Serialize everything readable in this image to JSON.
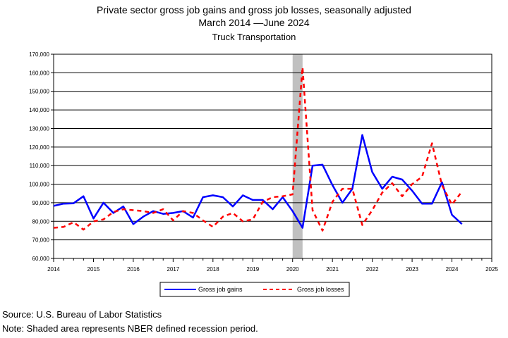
{
  "chart_data": {
    "type": "line",
    "title": "Private sector gross job gains and gross job losses, seasonally adjusted",
    "subtitle": "March 2014 —June 2024",
    "series_title": "Truck Transportation",
    "xlabel": "",
    "ylabel": "",
    "xlim": [
      2014,
      2025
    ],
    "ylim": [
      60000,
      170000
    ],
    "y_ticks": [
      "60,000",
      "70,000",
      "80,000",
      "90,000",
      "100,000",
      "110,000",
      "120,000",
      "130,000",
      "140,000",
      "150,000",
      "160,000",
      "170,000"
    ],
    "x_ticks": [
      "2014",
      "2015",
      "2016",
      "2017",
      "2018",
      "2019",
      "2020",
      "2021",
      "2022",
      "2023",
      "2024",
      "2025"
    ],
    "grid": "horizontal",
    "legend_position": "bottom",
    "recession": {
      "start": 2020.0,
      "end": 2020.25,
      "color": "#c0c0c0"
    },
    "x": [
      2014.0,
      2014.25,
      2014.5,
      2014.75,
      2015.0,
      2015.25,
      2015.5,
      2015.75,
      2016.0,
      2016.25,
      2016.5,
      2016.75,
      2017.0,
      2017.25,
      2017.5,
      2017.75,
      2018.0,
      2018.25,
      2018.5,
      2018.75,
      2019.0,
      2019.25,
      2019.5,
      2019.75,
      2020.0,
      2020.25,
      2020.5,
      2020.75,
      2021.0,
      2021.25,
      2021.5,
      2021.75,
      2022.0,
      2022.25,
      2022.5,
      2022.75,
      2023.0,
      2023.25,
      2023.5,
      2023.75,
      2024.0,
      2024.25
    ],
    "series": [
      {
        "name": "Gross job gains",
        "color": "#0000ff",
        "style": "solid",
        "values": [
          88300,
          89500,
          89700,
          93500,
          81500,
          90000,
          84500,
          88000,
          78500,
          82500,
          85500,
          84000,
          84500,
          85500,
          82000,
          93000,
          94000,
          93000,
          88000,
          94000,
          91500,
          91500,
          86500,
          93000,
          85500,
          76500,
          110000,
          110500,
          99500,
          90000,
          97500,
          126500,
          106500,
          97500,
          104000,
          102500,
          96500,
          89500,
          89500,
          101000,
          83500,
          78500
        ]
      },
      {
        "name": "Gross job losses",
        "color": "#ff0000",
        "style": "dashed",
        "values": [
          76500,
          77000,
          79500,
          75500,
          80000,
          81000,
          85000,
          86500,
          86000,
          85500,
          84500,
          86500,
          80500,
          85500,
          84500,
          80500,
          77000,
          82500,
          84500,
          80000,
          81000,
          90500,
          93000,
          93500,
          94500,
          163000,
          86000,
          75000,
          90500,
          97500,
          97500,
          78000,
          86000,
          95500,
          100500,
          93500,
          100000,
          104000,
          122000,
          99500,
          89000,
          96000
        ]
      }
    ]
  },
  "footer": {
    "source": "Source: U.S. Bureau of Labor Statistics",
    "note": "Note: Shaded area represents NBER defined recession period."
  }
}
